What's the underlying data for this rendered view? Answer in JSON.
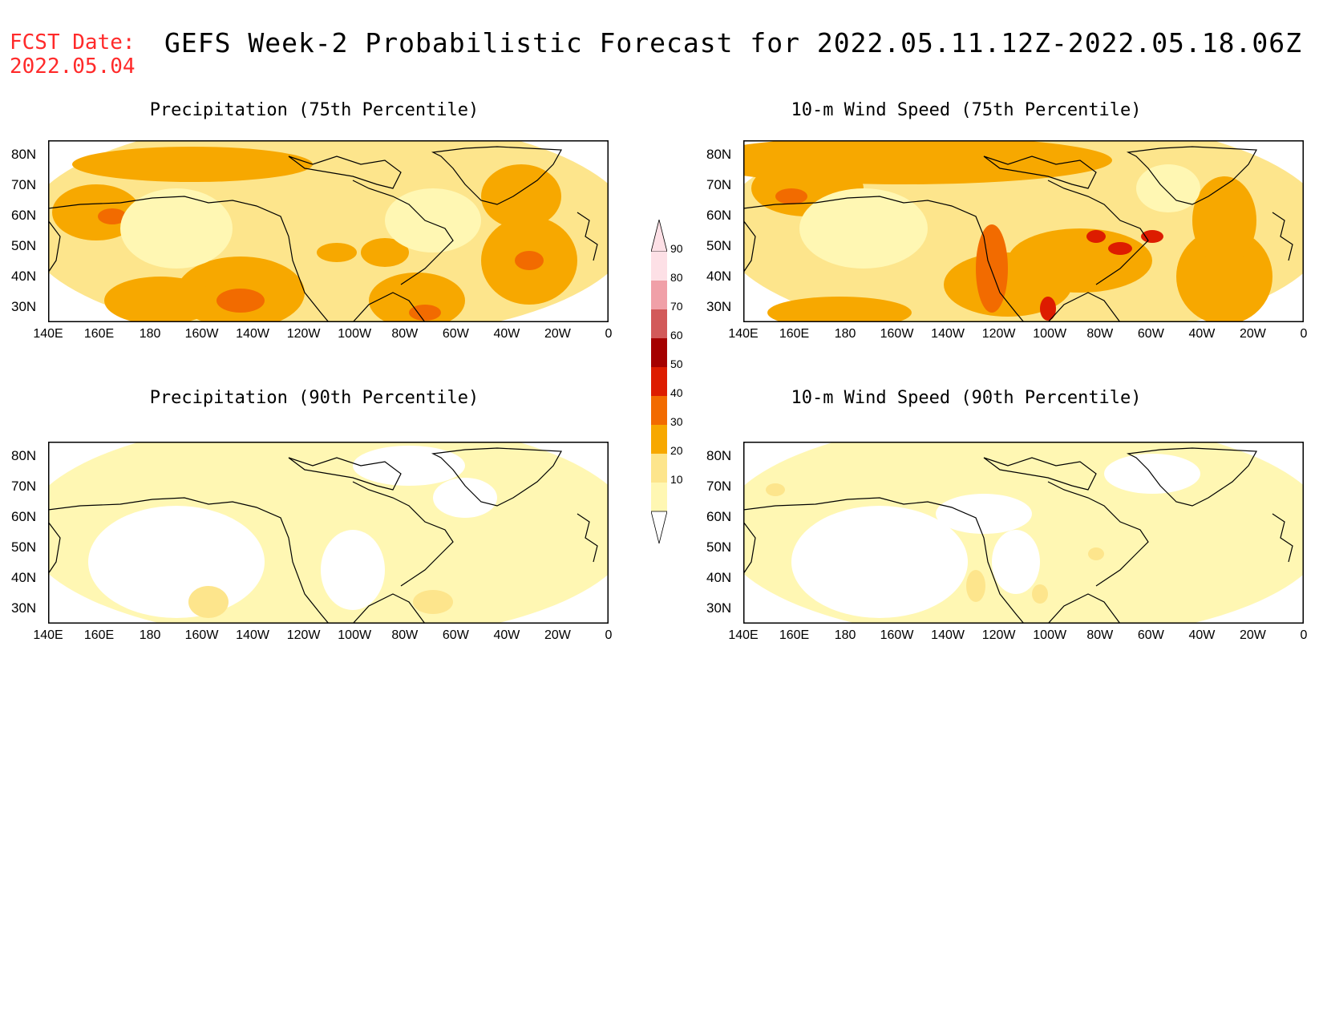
{
  "fcst_date": {
    "label": "FCST Date:",
    "date": "2022.05.04"
  },
  "title": "GEFS Week-2 Probabilistic Forecast for 2022.05.11.12Z-2022.05.18.06Z",
  "panels": [
    {
      "title": "Precipitation (75th Percentile)",
      "field": "precip_75"
    },
    {
      "title": "10-m Wind Speed (75th Percentile)",
      "field": "wind_75"
    },
    {
      "title": "Precipitation (90th Percentile)",
      "field": "precip_90"
    },
    {
      "title": "10-m Wind Speed (90th Percentile)",
      "field": "wind_90"
    }
  ],
  "lat_labels": [
    "80N",
    "70N",
    "60N",
    "50N",
    "40N",
    "30N"
  ],
  "lon_labels": [
    "140E",
    "160E",
    "180",
    "160W",
    "140W",
    "120W",
    "100W",
    "80W",
    "60W",
    "40W",
    "20W",
    "0"
  ],
  "colorbar": {
    "levels": [
      "10",
      "20",
      "30",
      "40",
      "50",
      "60",
      "70",
      "80",
      "90"
    ],
    "colors": [
      "#fff7b3",
      "#fde58c",
      "#f7a800",
      "#f26b00",
      "#dd1c00",
      "#a50000",
      "#d25a5a",
      "#f0a0a8",
      "#fde0e6"
    ]
  }
}
